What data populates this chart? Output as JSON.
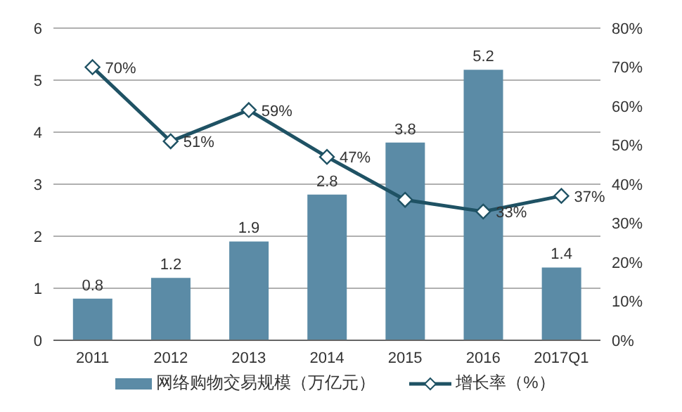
{
  "chart_data": {
    "type": "bar",
    "categories": [
      "2011",
      "2012",
      "2013",
      "2014",
      "2015",
      "2016",
      "2017Q1"
    ],
    "series": [
      {
        "name": "网络购物交易规模（万亿元）",
        "color": "#5b8ba6",
        "values": [
          0.8,
          1.2,
          1.9,
          2.8,
          3.8,
          5.2,
          1.4
        ],
        "value_labels": [
          "0.8",
          "1.2",
          "1.9",
          "2.8",
          "3.8",
          "5.2",
          "1.4"
        ]
      },
      {
        "name": "增长率（%）",
        "type": "line",
        "axis": "y2",
        "color": "#1f5264",
        "marker": "diamond",
        "values": [
          70,
          51,
          59,
          47,
          36,
          33,
          37
        ],
        "value_labels": [
          "70%",
          "51%",
          "59%",
          "47%",
          null,
          "33%",
          "37%"
        ]
      }
    ],
    "ylim": [
      0,
      6
    ],
    "yticks": [
      0,
      1,
      2,
      3,
      4,
      5,
      6
    ],
    "y2lim": [
      0,
      80
    ],
    "y2ticks": [
      {
        "value": 0,
        "label": "0%"
      },
      {
        "value": 10,
        "label": "10%"
      },
      {
        "value": 20,
        "label": "20%"
      },
      {
        "value": 30,
        "label": "30%"
      },
      {
        "value": 40,
        "label": "40%"
      },
      {
        "value": 50,
        "label": "50%"
      },
      {
        "value": 60,
        "label": "60%"
      },
      {
        "value": 70,
        "label": "70%"
      },
      {
        "value": 80,
        "label": "80%"
      }
    ],
    "grid": "y",
    "legend": "bottom"
  }
}
